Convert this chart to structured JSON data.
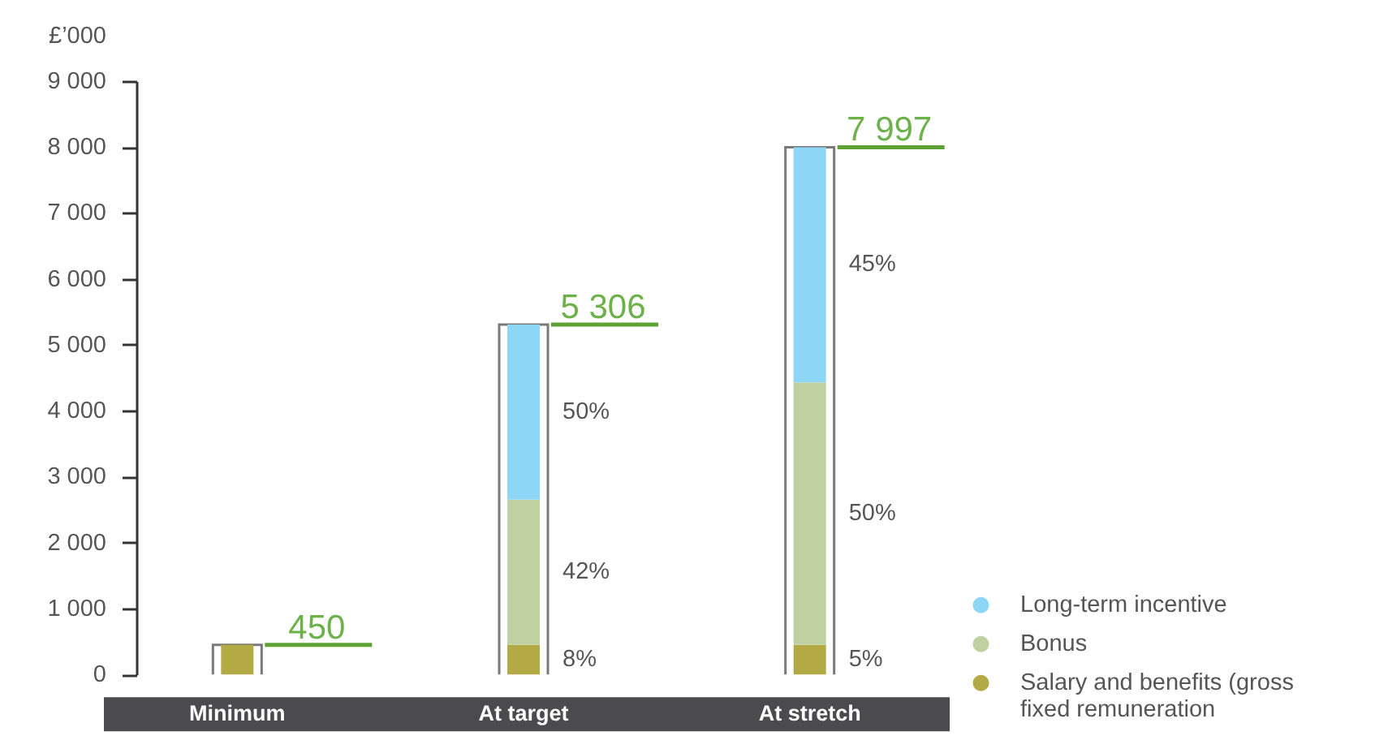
{
  "chart_data": {
    "type": "bar",
    "stacked": true,
    "ylabel": "£’000",
    "categories": [
      "Minimum",
      "At target",
      "At stretch"
    ],
    "series": [
      {
        "name": "Salary and benefits (gross fixed remuneration",
        "color": "#b3aa46",
        "values": [
          450,
          450,
          450
        ]
      },
      {
        "name": "Bonus",
        "color": "#bfd1a0",
        "values": [
          null,
          2203,
          3980
        ]
      },
      {
        "name": "Long-term incentive",
        "color": "#8dd6f6",
        "values": [
          null,
          2653,
          3567
        ]
      }
    ],
    "totals": [
      "450",
      "5 306",
      "7 997"
    ],
    "annotations": [
      "8%",
      "42%",
      "50%",
      "5%",
      "50%",
      "45%"
    ],
    "ylim": [
      0,
      9000
    ],
    "yticks": [
      0,
      {
        "value": 1000,
        "label": "1 000"
      },
      {
        "value": 2000,
        "label": "2 000"
      },
      {
        "value": 3000,
        "label": "3 000"
      },
      {
        "value": 4000,
        "label": "4 000"
      },
      {
        "value": 5000,
        "label": "5 000"
      },
      {
        "value": 6000,
        "label": "6 000"
      },
      {
        "value": 7000,
        "label": "7 000"
      },
      {
        "value": 8000,
        "label": "8 000"
      },
      {
        "value": 9000,
        "label": "9 000"
      }
    ],
    "legend": "bottom right"
  }
}
